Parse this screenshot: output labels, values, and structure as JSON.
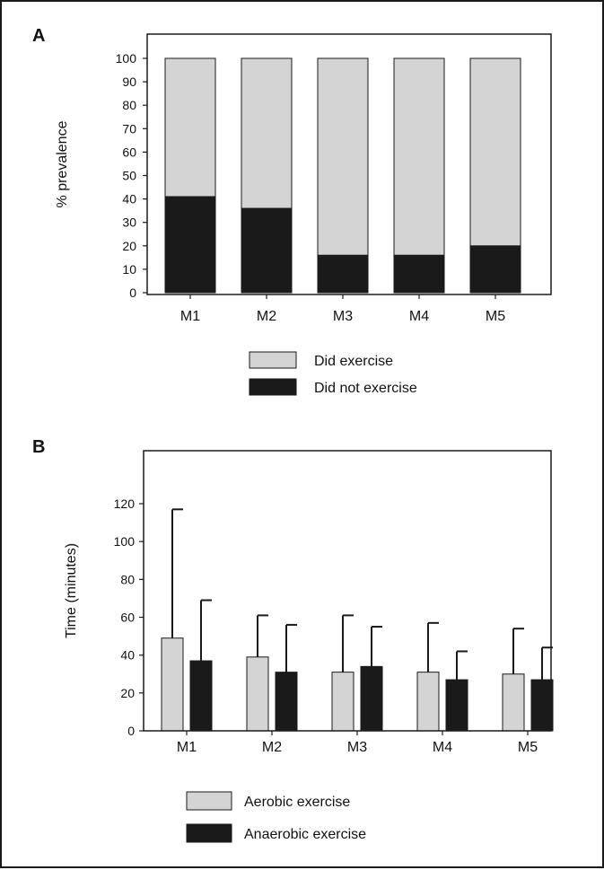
{
  "chart_data": [
    {
      "panel": "A",
      "type": "bar",
      "stacked": true,
      "categories": [
        "M1",
        "M2",
        "M3",
        "M4",
        "M5"
      ],
      "ylabel": "% prevalence",
      "ylim": [
        0,
        100
      ],
      "yticks": [
        0,
        10,
        20,
        30,
        40,
        50,
        60,
        70,
        80,
        90,
        100
      ],
      "series": [
        {
          "name": "Did not exercise",
          "values": [
            41,
            36,
            16,
            16,
            20
          ],
          "color": "#1a1a1a"
        },
        {
          "name": "Did exercise",
          "values": [
            59,
            64,
            84,
            84,
            80
          ],
          "color": "#d4d4d4"
        }
      ],
      "legend_order": [
        "Did exercise",
        "Did not exercise"
      ],
      "legend": "bottom"
    },
    {
      "panel": "B",
      "type": "bar",
      "categories": [
        "M1",
        "M2",
        "M3",
        "M4",
        "M5"
      ],
      "ylabel": "Time (minutes)",
      "ylim": [
        0,
        120
      ],
      "yticks": [
        0,
        20,
        40,
        60,
        80,
        100,
        120
      ],
      "series": [
        {
          "name": "Aerobic exercise",
          "values": [
            49,
            39,
            31,
            31,
            30
          ],
          "errors": [
            68,
            22,
            30,
            26,
            24
          ],
          "color": "#d4d4d4"
        },
        {
          "name": "Anaerobic exercise",
          "values": [
            37,
            31,
            34,
            27,
            27
          ],
          "errors": [
            32,
            25,
            21,
            15,
            17
          ],
          "color": "#1a1a1a"
        }
      ],
      "legend": "bottom"
    }
  ]
}
